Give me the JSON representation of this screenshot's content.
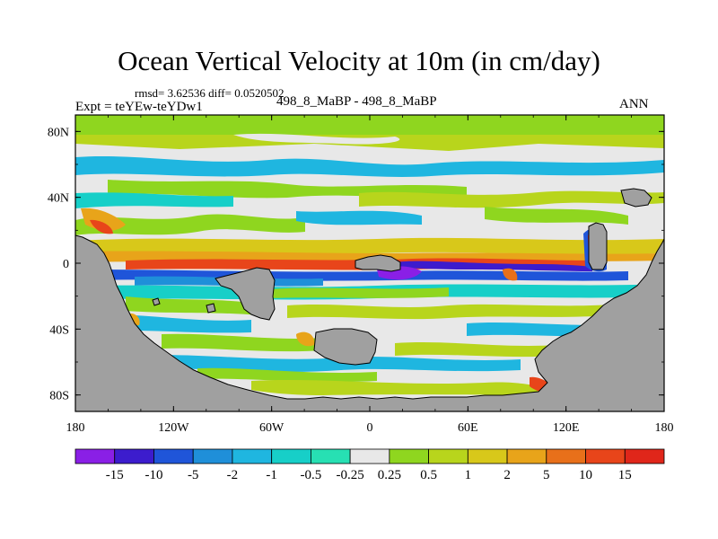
{
  "title": "Ocean Vertical Velocity at 10m (in cm/day)",
  "stats": "rmsd= 3.62536 diff= 0.0520502",
  "experiment": "Expt = teYEw-teYDw1",
  "case_label": "498_8_MaBP - 498_8_MaBP",
  "season": "ANN",
  "axes": {
    "x_ticks": [
      "180",
      "120W",
      "60W",
      "0",
      "60E",
      "120E",
      "180"
    ],
    "y_ticks": [
      "80N",
      "40N",
      "0",
      "40S",
      "80S"
    ]
  },
  "colorbar": {
    "labels": [
      "-15",
      "-10",
      "-5",
      "-2",
      "-1",
      "-0.5",
      "-0.25",
      "0.25",
      "0.5",
      "1",
      "2",
      "5",
      "10",
      "15"
    ],
    "colors": [
      "#8a1fe6",
      "#3c1ccd",
      "#1f55d9",
      "#1f8fd9",
      "#1fb6e0",
      "#17cfc8",
      "#27e0b3",
      "#e8e8e8",
      "#8fd61f",
      "#b8d51c",
      "#d8c81a",
      "#e8a41a",
      "#e8701a",
      "#e8451a",
      "#e0261a"
    ]
  },
  "colors": {
    "land": "#a0a0a0",
    "neutral": "#e8e8e8"
  }
}
